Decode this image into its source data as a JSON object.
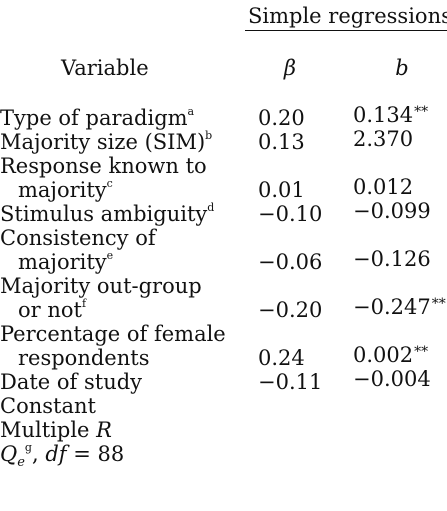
{
  "table": {
    "group_header": "Simple regressions",
    "col_variable": "Variable",
    "col_beta": "β",
    "col_b": "b",
    "rows": [
      {
        "label": "Type of paradigm",
        "note": "a",
        "beta": "0.20",
        "b": "0.134",
        "b_sig": "**"
      },
      {
        "label": "Majority size (SIM)",
        "note": "b",
        "beta": "0.13",
        "b": "2.370",
        "b_sig": ""
      },
      {
        "label_line1": "Response known to",
        "label_line2": "majority",
        "note": "c",
        "beta": "0.01",
        "b": "0.012",
        "b_sig": ""
      },
      {
        "label": "Stimulus ambiguity",
        "note": "d",
        "beta": "−0.10",
        "b": "−0.099",
        "b_sig": ""
      },
      {
        "label_line1": "Consistency of",
        "label_line2": "majority",
        "note": "e",
        "beta": "−0.06",
        "b": "−0.126",
        "b_sig": ""
      },
      {
        "label_line1": "Majority out-group",
        "label_line2": "or not",
        "note": "f",
        "beta": "−0.20",
        "b": "−0.247",
        "b_sig": "**"
      },
      {
        "label_line1": "Percentage of female",
        "label_line2": "respondents",
        "note": "",
        "beta": "0.24",
        "b": "0.002",
        "b_sig": "**"
      },
      {
        "label": "Date of study",
        "note": "",
        "beta": "−0.11",
        "b": "−0.004",
        "b_sig": ""
      },
      {
        "label": "Constant"
      },
      {
        "label_prefix": "Multiple ",
        "label_ital": "R"
      },
      {
        "label_ital": "Q",
        "label_sub": "e",
        "note": "g",
        "label_mid": ", ",
        "label_ital2": "df",
        "label_suffix": " = 88"
      }
    ]
  }
}
